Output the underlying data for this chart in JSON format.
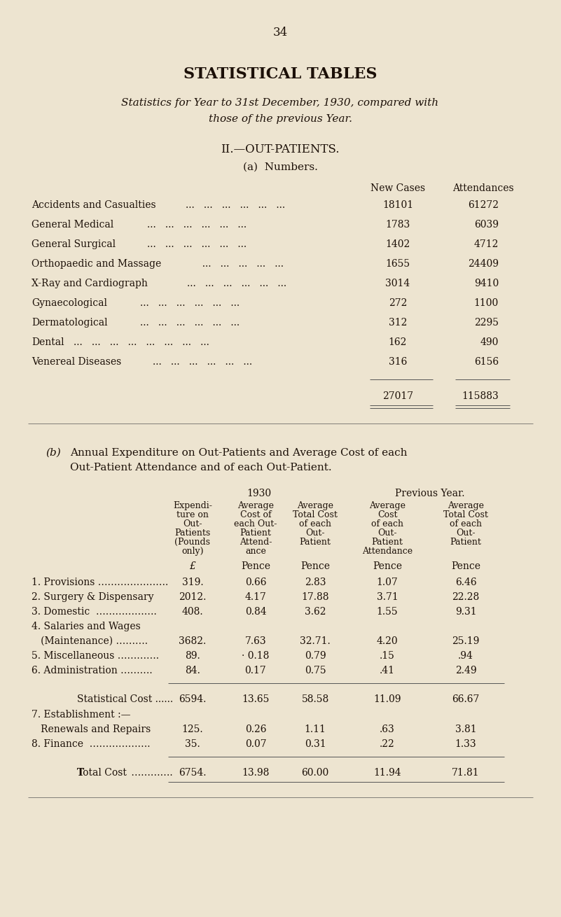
{
  "bg_color": "#ede4d0",
  "page_number": "34",
  "main_title": "STATISTICAL TABLES",
  "subtitle_line1": "Statistics for Year to 31st December, 1930, compared with",
  "subtitle_line2": "those of the previous Year.",
  "section_title": "II.—OUT-PATIENTS.",
  "subsection_a": "(a)  Numbers.",
  "rows_a": [
    [
      "Accidents and Casualties",
      "18101",
      "61272"
    ],
    [
      "General Medical",
      "1783",
      "6039"
    ],
    [
      "General Surgical",
      "1402",
      "4712"
    ],
    [
      "Orthopaedic and Massage",
      "1655",
      "24409"
    ],
    [
      "X-Ray and Cardiograph",
      "3014",
      "9410"
    ],
    [
      "Gynaecological",
      "272",
      "1100"
    ],
    [
      "Dermatological",
      "312",
      "2295"
    ],
    [
      "Dental",
      "162",
      "490"
    ],
    [
      "Venereal Diseases",
      "316",
      "6156"
    ]
  ],
  "dots_a": [
    "...   ...   ...   ...   ...   ...",
    "...   ...   ...   ...   ...   ...",
    "...   ...   ...   ...   ...   ...",
    "  ...   ...   ...   ...   ...",
    "...   ...   ...   ...   ...   ...",
    "...   ...   ...   ...   ...   ...",
    "...   ...   ...   ...   ...   ...",
    "...   ...   ...   ...   ...   ...   ...   ...",
    "...   ...   ...   ...   ...   ..."
  ],
  "total_new_cases": "27017",
  "total_attendances": "115883",
  "subsection_b_line1": "(b)  Annual Expenditure on Out-Patients and Average Cost of each",
  "subsection_b_line2": "Out-Patient Attendance and of each Out-Patient.",
  "year_1930": "1930",
  "year_prev": "Previous Year.",
  "col_header_lines": [
    [
      "Expendi-",
      "ture on",
      "Out-",
      "Patients",
      "(Pounds",
      "only)"
    ],
    [
      "Average",
      "Cost of",
      "each Out-",
      "Patient",
      "Attend-",
      "ance"
    ],
    [
      "Average",
      "Total Cost",
      "of each",
      "Out-",
      "Patient",
      ""
    ],
    [
      "Average",
      "Cost",
      "of each",
      "Out-",
      "Patient",
      "Attendance"
    ],
    [
      "Average",
      "Total Cost",
      "of each",
      "Out-",
      "Patient",
      ""
    ]
  ],
  "col_units": [
    "£",
    "Pence",
    "Pence",
    "Pence",
    "Pence"
  ],
  "rows_b": [
    [
      "1. Provisions ………………….",
      "319.",
      "0.66",
      "2.83",
      "1.07",
      "6.46"
    ],
    [
      "2. Surgery & Dispensary",
      "2012.",
      "4.17",
      "17.88",
      "3.71",
      "22.28"
    ],
    [
      "3. Domestic  ……………….",
      "408.",
      "0.84",
      "3.62",
      "1.55",
      "9.31"
    ],
    [
      "4. Salaries and Wages",
      "",
      "",
      "",
      "",
      ""
    ],
    [
      "   (Maintenance) ……….",
      "3682.",
      "7.63",
      "32.71.",
      "4.20",
      "25.19"
    ],
    [
      "5. Miscellaneous ………….",
      "89.",
      "· 0.18",
      "0.79",
      ".15",
      ".94"
    ],
    [
      "6. Administration ……….",
      "84.",
      "0.17",
      "0.75",
      ".41",
      "2.49"
    ]
  ],
  "stat_cost_label": "Statistical Cost ......",
  "stat_cost_vals": [
    "6594.",
    "13.65",
    "58.58",
    "11.09",
    "66.67"
  ],
  "rows_b2": [
    [
      "7. Establishment :—",
      "",
      "",
      "",
      "",
      ""
    ],
    [
      "   Renewals and Repairs",
      "125.",
      "0.26",
      "1.11",
      ".63",
      "3.81"
    ],
    [
      "8. Finance  ……………….",
      "35.",
      "0.07",
      "0.31",
      ".22",
      "1.33"
    ]
  ],
  "total_cost_vals": [
    "6754.",
    "13.98",
    "60.00",
    "11.94",
    "71.81"
  ],
  "text_color": "#1c1008"
}
